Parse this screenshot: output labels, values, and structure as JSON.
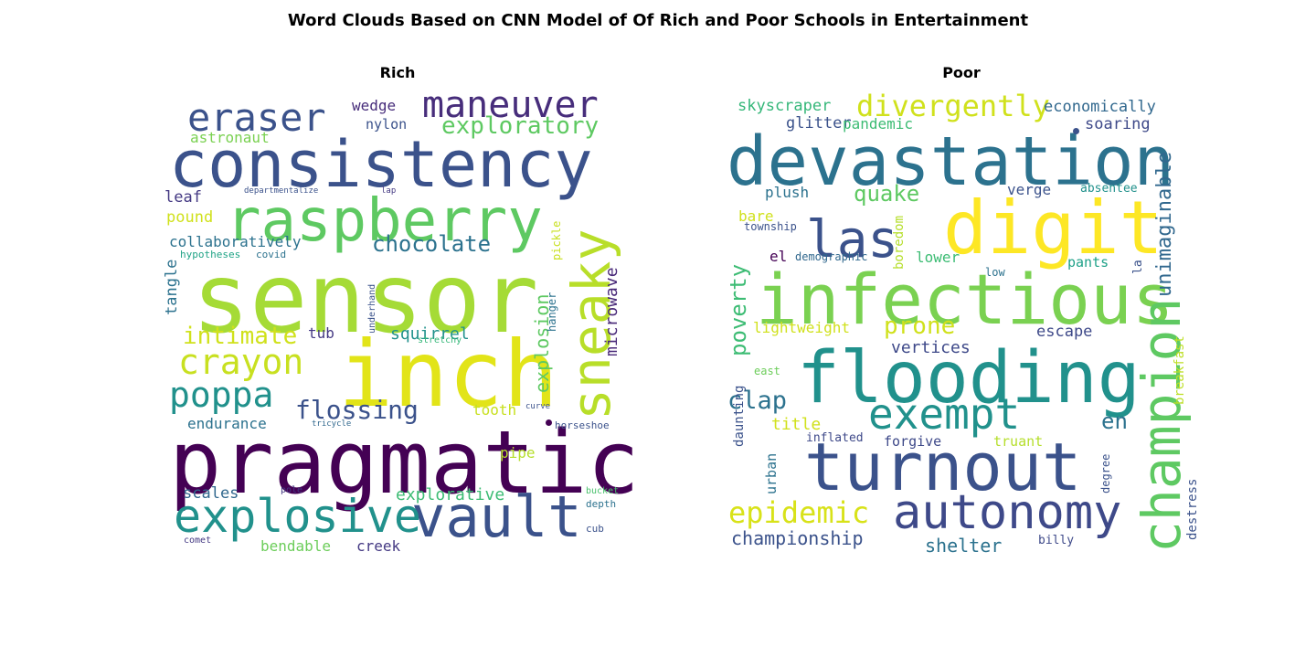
{
  "figure": {
    "title": "Word Clouds Based on CNN Model of Of Rich and Poor Schools in Entertainment"
  },
  "panels": [
    {
      "title": "Rich",
      "words": [
        {
          "text": "sensor",
          "color": "#a5db36"
        },
        {
          "text": "pragmatic",
          "color": "#440154"
        },
        {
          "text": "consistency",
          "color": "#3b528b"
        },
        {
          "text": "inch",
          "color": "#e2e418"
        },
        {
          "text": "raspberry",
          "color": "#5ec962"
        },
        {
          "text": "vault",
          "color": "#3b528b"
        },
        {
          "text": "sneaky",
          "color": "#b8de29"
        },
        {
          "text": "explosive",
          "color": "#21918c"
        },
        {
          "text": "maneuver",
          "color": "#472d7b"
        },
        {
          "text": "eraser",
          "color": "#3b528b"
        },
        {
          "text": "crayon",
          "color": "#c8e020"
        },
        {
          "text": "poppa",
          "color": "#21918c"
        },
        {
          "text": "exploratory",
          "color": "#5ec962"
        },
        {
          "text": "chocolate",
          "color": "#2c728e"
        },
        {
          "text": "flossing",
          "color": "#3b528b"
        },
        {
          "text": "intimate",
          "color": "#d0e11c"
        },
        {
          "text": "collaboratively",
          "color": "#2c728e"
        },
        {
          "text": "squirrel",
          "color": "#21918c"
        },
        {
          "text": "tooth",
          "color": "#c8e020"
        },
        {
          "text": "explorative",
          "color": "#3dbc74"
        },
        {
          "text": "microwave",
          "color": "#482878"
        },
        {
          "text": "explosion",
          "color": "#5ec962"
        },
        {
          "text": "tangle",
          "color": "#2c728e"
        },
        {
          "text": "endurance",
          "color": "#2c728e"
        },
        {
          "text": "scales",
          "color": "#31688e"
        },
        {
          "text": "bendable",
          "color": "#6ccd5a"
        },
        {
          "text": "creek",
          "color": "#443983"
        },
        {
          "text": "wedge",
          "color": "#472d7b"
        },
        {
          "text": "nylon",
          "color": "#3b528b"
        },
        {
          "text": "astronaut",
          "color": "#7ad151"
        },
        {
          "text": "leaf",
          "color": "#443983"
        },
        {
          "text": "pound",
          "color": "#d0e11c"
        },
        {
          "text": "tub",
          "color": "#443983"
        },
        {
          "text": "pipe",
          "color": "#b5de2b"
        },
        {
          "text": "hanger",
          "color": "#2c728e"
        },
        {
          "text": "pickle",
          "color": "#c8e020"
        },
        {
          "text": "hypotheses",
          "color": "#20a386"
        },
        {
          "text": "covid",
          "color": "#2c728e"
        },
        {
          "text": "underhand",
          "color": "#3b528b"
        },
        {
          "text": "stretchy",
          "color": "#35b779"
        },
        {
          "text": "departmentalize",
          "color": "#3b528b"
        },
        {
          "text": "lap",
          "color": "#443983"
        },
        {
          "text": "curve",
          "color": "#3b528b"
        },
        {
          "text": "horseshoe",
          "color": "#3b528b"
        },
        {
          "text": "tricycle",
          "color": "#31688e"
        },
        {
          "text": "pole",
          "color": "#443983"
        },
        {
          "text": "bucket",
          "color": "#4ac16d"
        },
        {
          "text": "depth",
          "color": "#2c728e"
        },
        {
          "text": "cub",
          "color": "#3b528b"
        },
        {
          "text": "comet",
          "color": "#443983"
        }
      ]
    },
    {
      "title": "Poor",
      "words": [
        {
          "text": "devastation",
          "color": "#2c728e"
        },
        {
          "text": "infectious",
          "color": "#7ad151"
        },
        {
          "text": "flooding",
          "color": "#21918c"
        },
        {
          "text": "turnout",
          "color": "#3b528b"
        },
        {
          "text": "digit",
          "color": "#fde725"
        },
        {
          "text": "champion",
          "color": "#5ec962"
        },
        {
          "text": "autonomy",
          "color": "#3e4989"
        },
        {
          "text": "exempt",
          "color": "#21918c"
        },
        {
          "text": "las",
          "color": "#3b528b"
        },
        {
          "text": "divergently",
          "color": "#d0e11c"
        },
        {
          "text": "epidemic",
          "color": "#d8e219"
        },
        {
          "text": "poverty",
          "color": "#3dbc74"
        },
        {
          "text": "quake",
          "color": "#5ec962"
        },
        {
          "text": "clap",
          "color": "#2c728e"
        },
        {
          "text": "prone",
          "color": "#d0e11c"
        },
        {
          "text": "unimaginable",
          "color": "#31688e"
        },
        {
          "text": "championship",
          "color": "#3b528b"
        },
        {
          "text": "shelter",
          "color": "#2c728e"
        },
        {
          "text": "en",
          "color": "#2c728e"
        },
        {
          "text": "vertices",
          "color": "#3e4989"
        },
        {
          "text": "skyscraper",
          "color": "#35b779"
        },
        {
          "text": "economically",
          "color": "#31688e"
        },
        {
          "text": "glitter",
          "color": "#3b528b"
        },
        {
          "text": "pandemic",
          "color": "#3dbc74"
        },
        {
          "text": "soaring",
          "color": "#3e4989"
        },
        {
          "text": "plush",
          "color": "#2c728e"
        },
        {
          "text": "verge",
          "color": "#3b528b"
        },
        {
          "text": "absentee",
          "color": "#21918c"
        },
        {
          "text": "bare",
          "color": "#d0e11c"
        },
        {
          "text": "township",
          "color": "#3b528b"
        },
        {
          "text": "boredom",
          "color": "#b5de2b"
        },
        {
          "text": "el",
          "color": "#440154"
        },
        {
          "text": "demographic",
          "color": "#31688e"
        },
        {
          "text": "lower",
          "color": "#3dbc74"
        },
        {
          "text": "pants",
          "color": "#1fa188"
        },
        {
          "text": "la",
          "color": "#3b528b"
        },
        {
          "text": "low",
          "color": "#2c728e"
        },
        {
          "text": "lightweight",
          "color": "#d0e11c"
        },
        {
          "text": "escape",
          "color": "#3e4989"
        },
        {
          "text": "breakfast",
          "color": "#bddf26"
        },
        {
          "text": "east",
          "color": "#6ccd5a"
        },
        {
          "text": "title",
          "color": "#d0e11c"
        },
        {
          "text": "daunting",
          "color": "#3b528b"
        },
        {
          "text": "inflated",
          "color": "#3e4989"
        },
        {
          "text": "urban",
          "color": "#2c728e"
        },
        {
          "text": "forgive",
          "color": "#3e4989"
        },
        {
          "text": "truant",
          "color": "#b5de2b"
        },
        {
          "text": "degree",
          "color": "#3b528b"
        },
        {
          "text": "destress",
          "color": "#3b528b"
        },
        {
          "text": "billy",
          "color": "#3e4989"
        }
      ]
    }
  ]
}
